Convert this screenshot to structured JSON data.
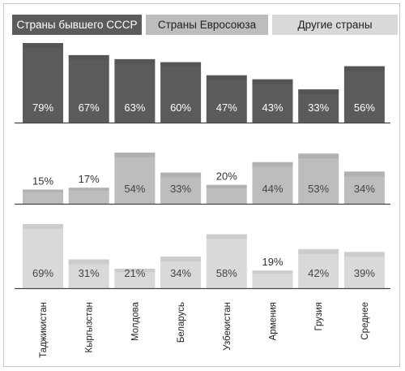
{
  "chart_data": [
    {
      "type": "bar",
      "series": [
        {
          "name": "Страны бывшего СССР",
          "values": [
            79,
            67,
            63,
            60,
            47,
            43,
            33,
            56
          ]
        }
      ],
      "categories": [
        "Таджикистан",
        "Кыргызстан",
        "Молдова",
        "Беларусь",
        "Узбекистан",
        "Армения",
        "Грузия",
        "Среднее"
      ],
      "value_labels": [
        "79%",
        "67%",
        "63%",
        "60%",
        "47%",
        "43%",
        "33%",
        "56%"
      ],
      "ylim": [
        0,
        100
      ],
      "color": "#5b5b5b"
    },
    {
      "type": "bar",
      "series": [
        {
          "name": "Страны Евросоюза",
          "values": [
            15,
            17,
            54,
            33,
            20,
            44,
            53,
            34
          ]
        }
      ],
      "categories": [
        "Таджикистан",
        "Кыргызстан",
        "Молдова",
        "Беларусь",
        "Узбекистан",
        "Армения",
        "Грузия",
        "Среднее"
      ],
      "value_labels": [
        "15%",
        "17%",
        "54%",
        "33%",
        "20%",
        "44%",
        "53%",
        "34%"
      ],
      "ylim": [
        0,
        100
      ],
      "color": "#bdbdbd"
    },
    {
      "type": "bar",
      "series": [
        {
          "name": "Другие страны",
          "values": [
            69,
            31,
            21,
            34,
            58,
            19,
            42,
            39
          ]
        }
      ],
      "categories": [
        "Таджикистан",
        "Кыргызстан",
        "Молдова",
        "Беларусь",
        "Узбекистан",
        "Армения",
        "Грузия",
        "Среднее"
      ],
      "value_labels": [
        "69%",
        "31%",
        "21%",
        "34%",
        "58%",
        "19%",
        "42%",
        "39%"
      ],
      "ylim": [
        0,
        100
      ],
      "color": "#d9d9d9"
    }
  ],
  "legend": {
    "items": [
      {
        "label": "Страны бывшего СССР",
        "color": "#5b5b5b",
        "text_color": "#ffffff"
      },
      {
        "label": "Страны Евросоюза",
        "color": "#bdbdbd",
        "text_color": "#222222"
      },
      {
        "label": "Другие страны",
        "color": "#d9d9d9",
        "text_color": "#222222"
      }
    ]
  }
}
